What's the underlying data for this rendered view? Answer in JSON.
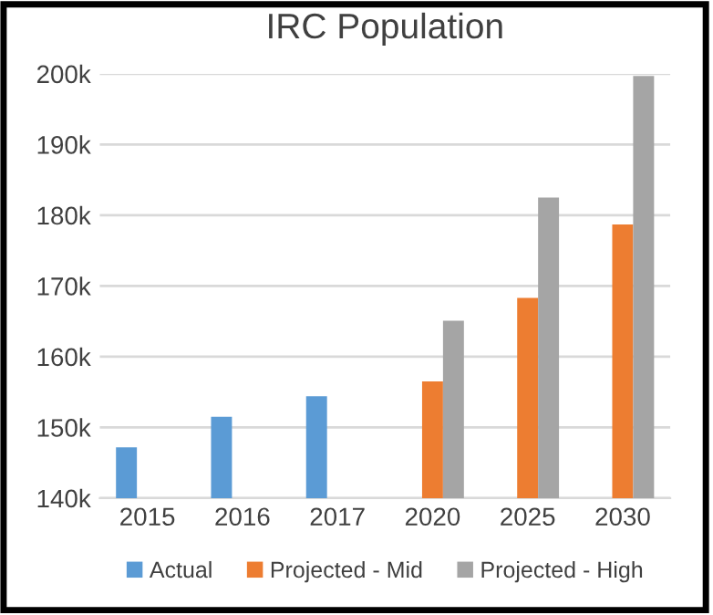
{
  "chart_data": {
    "type": "bar",
    "title": "IRC Population",
    "categories": [
      "2015",
      "2016",
      "2017",
      "2020",
      "2025",
      "2030"
    ],
    "series": [
      {
        "name": "Actual",
        "color": "#5b9bd5",
        "values": [
          147200,
          151500,
          154400,
          null,
          null,
          null
        ]
      },
      {
        "name": "Projected - Mid",
        "color": "#ed7d31",
        "values": [
          null,
          null,
          null,
          156500,
          168300,
          178700
        ]
      },
      {
        "name": "Projected - High",
        "color": "#a5a5a5",
        "values": [
          null,
          null,
          null,
          165100,
          182500,
          199700
        ]
      }
    ],
    "ylim": [
      140000,
      200000
    ],
    "yticks": [
      {
        "value": 140000,
        "label": "140k"
      },
      {
        "value": 150000,
        "label": "150k"
      },
      {
        "value": 160000,
        "label": "160k"
      },
      {
        "value": 170000,
        "label": "170k"
      },
      {
        "value": 180000,
        "label": "180k"
      },
      {
        "value": 190000,
        "label": "190k"
      },
      {
        "value": 200000,
        "label": "200k"
      }
    ],
    "grid": "y",
    "legend": "bottom"
  }
}
